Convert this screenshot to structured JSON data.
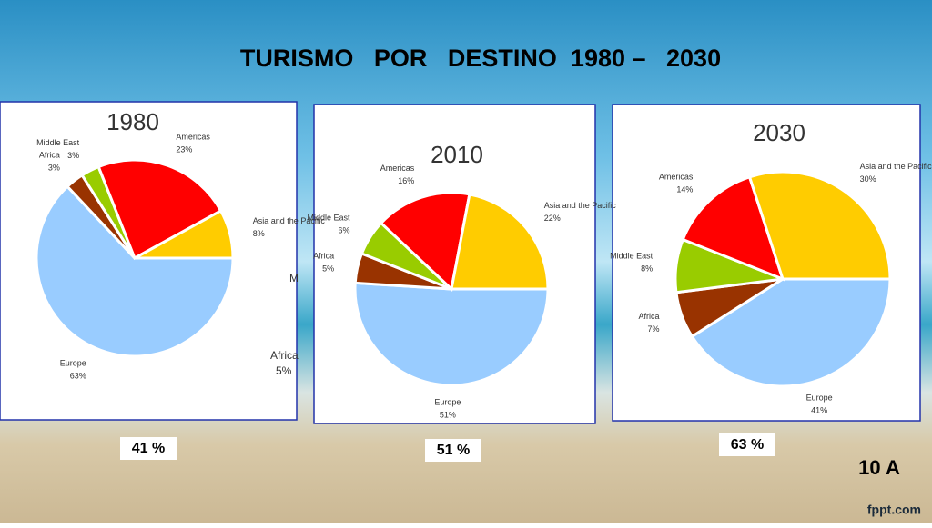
{
  "slide": {
    "title": "TURISMO   POR   DESTINO  1980 –   2030",
    "shares": [
      "41 %",
      "51 %",
      "63 %"
    ],
    "tag": "10 A",
    "watermark": "fppt.com",
    "stray": [
      "M",
      "Africa",
      "5%"
    ]
  },
  "chart_data": [
    {
      "type": "pie",
      "title": "1980",
      "categories": [
        "Europe",
        "Africa",
        "Middle East",
        "Americas",
        "Asia and the Pacific"
      ],
      "values": [
        63,
        3,
        3,
        23,
        8
      ],
      "value_labels": [
        "63%",
        "3%",
        "3%",
        "23%",
        "8%"
      ],
      "colors": [
        "#99ccff",
        "#993300",
        "#99cc00",
        "#ff0000",
        "#ffcc00"
      ]
    },
    {
      "type": "pie",
      "title": "2010",
      "categories": [
        "Europe",
        "Africa",
        "Middle East",
        "Americas",
        "Asia and the Pacific"
      ],
      "values": [
        51,
        5,
        6,
        16,
        22
      ],
      "value_labels": [
        "51%",
        "5%",
        "6%",
        "16%",
        "22%"
      ],
      "colors": [
        "#99ccff",
        "#993300",
        "#99cc00",
        "#ff0000",
        "#ffcc00"
      ]
    },
    {
      "type": "pie",
      "title": "2030",
      "categories": [
        "Europe",
        "Africa",
        "Middle East",
        "Americas",
        "Asia and the Pacific"
      ],
      "values": [
        41,
        7,
        8,
        14,
        30
      ],
      "value_labels": [
        "41%",
        "7%",
        "8%",
        "14%",
        "30%"
      ],
      "colors": [
        "#99ccff",
        "#993300",
        "#99cc00",
        "#ff0000",
        "#ffcc00"
      ]
    }
  ]
}
